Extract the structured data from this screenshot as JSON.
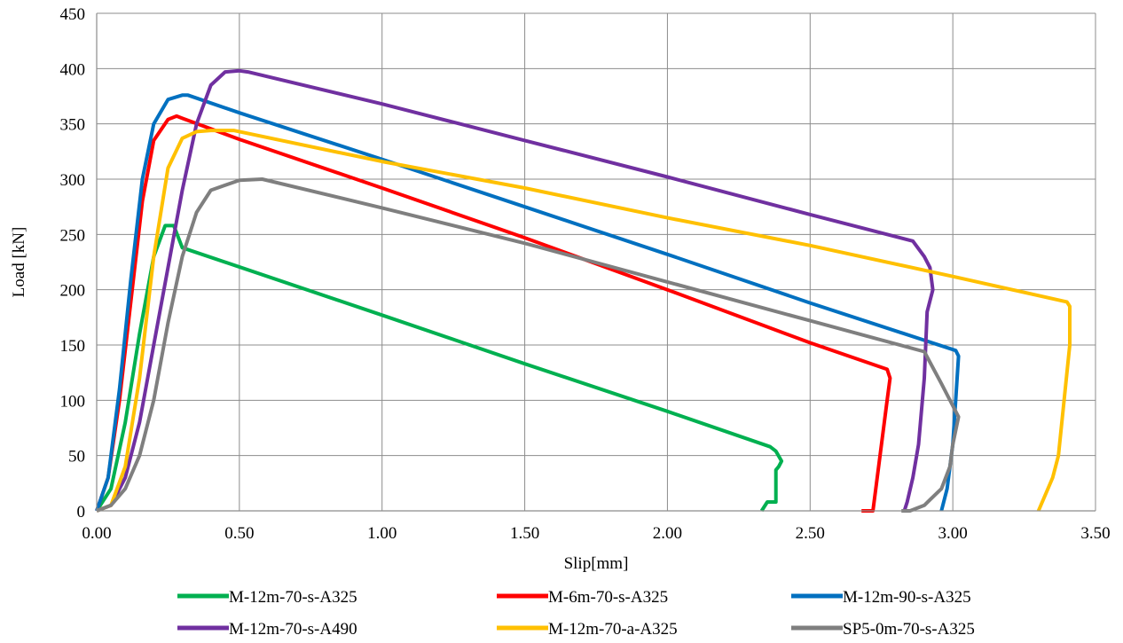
{
  "chart_data": {
    "type": "line",
    "xlabel": "Slip[mm]",
    "ylabel": "Load [kN]",
    "xlim": [
      0,
      3.5
    ],
    "ylim": [
      0,
      450
    ],
    "x_ticks": [
      "0.00",
      "0.50",
      "1.00",
      "1.50",
      "2.00",
      "2.50",
      "3.00",
      "3.50"
    ],
    "x_tick_values": [
      0,
      0.5,
      1.0,
      1.5,
      2.0,
      2.5,
      3.0,
      3.5
    ],
    "y_ticks": [
      "0",
      "50",
      "100",
      "150",
      "200",
      "250",
      "300",
      "350",
      "400",
      "450"
    ],
    "y_tick_values": [
      0,
      50,
      100,
      150,
      200,
      250,
      300,
      350,
      400,
      450
    ],
    "grid": true,
    "legend_position": "bottom",
    "series": [
      {
        "name": "M-12m-70-s-A325",
        "color": "#00b050",
        "points": [
          [
            0,
            0
          ],
          [
            0.05,
            20
          ],
          [
            0.1,
            80
          ],
          [
            0.15,
            160
          ],
          [
            0.2,
            230
          ],
          [
            0.24,
            258
          ],
          [
            0.27,
            258
          ],
          [
            0.3,
            238
          ],
          [
            1.0,
            177
          ],
          [
            1.5,
            133
          ],
          [
            2.0,
            90
          ],
          [
            2.36,
            58
          ],
          [
            2.38,
            54
          ],
          [
            2.4,
            45
          ],
          [
            2.39,
            40
          ],
          [
            2.38,
            37
          ],
          [
            2.38,
            8
          ],
          [
            2.35,
            8
          ],
          [
            2.34,
            4
          ],
          [
            2.33,
            0
          ]
        ]
      },
      {
        "name": "M-6m-70-s-A325",
        "color": "#ff0000",
        "points": [
          [
            0,
            0
          ],
          [
            0.04,
            30
          ],
          [
            0.08,
            100
          ],
          [
            0.12,
            190
          ],
          [
            0.16,
            280
          ],
          [
            0.2,
            335
          ],
          [
            0.25,
            354
          ],
          [
            0.28,
            357
          ],
          [
            0.3,
            355
          ],
          [
            0.5,
            336
          ],
          [
            1.0,
            292
          ],
          [
            1.5,
            247
          ],
          [
            2.0,
            200
          ],
          [
            2.5,
            152
          ],
          [
            2.77,
            128
          ],
          [
            2.78,
            120
          ],
          [
            2.77,
            100
          ],
          [
            2.75,
            60
          ],
          [
            2.73,
            20
          ],
          [
            2.72,
            0
          ],
          [
            2.68,
            0
          ]
        ]
      },
      {
        "name": "M-12m-90-s-A325",
        "color": "#0070c0",
        "points": [
          [
            0,
            0
          ],
          [
            0.04,
            30
          ],
          [
            0.08,
            110
          ],
          [
            0.12,
            210
          ],
          [
            0.16,
            300
          ],
          [
            0.2,
            350
          ],
          [
            0.25,
            372
          ],
          [
            0.3,
            376
          ],
          [
            0.32,
            376
          ],
          [
            0.5,
            360
          ],
          [
            1.0,
            318
          ],
          [
            1.5,
            275
          ],
          [
            2.0,
            232
          ],
          [
            2.5,
            188
          ],
          [
            3.01,
            145
          ],
          [
            3.02,
            140
          ],
          [
            3.01,
            100
          ],
          [
            3.0,
            60
          ],
          [
            2.98,
            20
          ],
          [
            2.96,
            0
          ]
        ]
      },
      {
        "name": "M-12m-70-s-A490",
        "color": "#7030a0",
        "points": [
          [
            0,
            0
          ],
          [
            0.05,
            5
          ],
          [
            0.1,
            30
          ],
          [
            0.15,
            80
          ],
          [
            0.2,
            150
          ],
          [
            0.25,
            220
          ],
          [
            0.3,
            290
          ],
          [
            0.35,
            350
          ],
          [
            0.4,
            385
          ],
          [
            0.45,
            397
          ],
          [
            0.5,
            398
          ],
          [
            0.53,
            397
          ],
          [
            1.0,
            368
          ],
          [
            1.5,
            335
          ],
          [
            2.0,
            302
          ],
          [
            2.5,
            268
          ],
          [
            2.86,
            244
          ],
          [
            2.9,
            230
          ],
          [
            2.92,
            220
          ],
          [
            2.93,
            200
          ],
          [
            2.92,
            190
          ],
          [
            2.91,
            180
          ],
          [
            2.9,
            120
          ],
          [
            2.88,
            60
          ],
          [
            2.86,
            30
          ],
          [
            2.84,
            8
          ],
          [
            2.83,
            0
          ]
        ]
      },
      {
        "name": "M-12m-70-a-A325",
        "color": "#ffc000",
        "points": [
          [
            0,
            0
          ],
          [
            0.05,
            5
          ],
          [
            0.1,
            40
          ],
          [
            0.15,
            120
          ],
          [
            0.2,
            230
          ],
          [
            0.25,
            310
          ],
          [
            0.3,
            337
          ],
          [
            0.35,
            343
          ],
          [
            0.4,
            344
          ],
          [
            0.48,
            344
          ],
          [
            1.0,
            316
          ],
          [
            1.5,
            292
          ],
          [
            2.0,
            265
          ],
          [
            2.5,
            240
          ],
          [
            3.0,
            212
          ],
          [
            3.4,
            189
          ],
          [
            3.41,
            185
          ],
          [
            3.41,
            150
          ],
          [
            3.39,
            100
          ],
          [
            3.37,
            50
          ],
          [
            3.35,
            30
          ],
          [
            3.3,
            0
          ]
        ]
      },
      {
        "name": "SP5-0m-70-s-A325",
        "color": "#7f7f7f",
        "points": [
          [
            0,
            0
          ],
          [
            0.05,
            5
          ],
          [
            0.1,
            20
          ],
          [
            0.15,
            50
          ],
          [
            0.2,
            100
          ],
          [
            0.25,
            170
          ],
          [
            0.3,
            230
          ],
          [
            0.35,
            270
          ],
          [
            0.4,
            290
          ],
          [
            0.5,
            299
          ],
          [
            0.58,
            300
          ],
          [
            1.0,
            274
          ],
          [
            1.5,
            242
          ],
          [
            2.0,
            207
          ],
          [
            2.5,
            172
          ],
          [
            2.9,
            144
          ],
          [
            2.96,
            115
          ],
          [
            3.02,
            85
          ],
          [
            3.0,
            60
          ],
          [
            2.99,
            40
          ],
          [
            2.96,
            20
          ],
          [
            2.92,
            10
          ],
          [
            2.9,
            5
          ],
          [
            2.85,
            0
          ],
          [
            2.82,
            0
          ]
        ]
      }
    ]
  }
}
